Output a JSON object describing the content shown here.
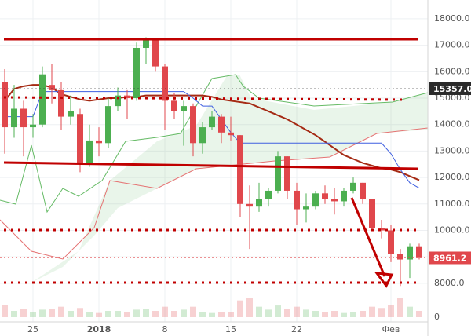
{
  "chart_data": {
    "type": "candlestick",
    "categories": [
      null,
      null,
      null,
      "25",
      null,
      null,
      null,
      null,
      null,
      null,
      "2018",
      null,
      null,
      null,
      null,
      null,
      null,
      "8",
      null,
      null,
      null,
      null,
      null,
      null,
      "15",
      null,
      null,
      null,
      null,
      null,
      null,
      "22",
      null,
      null,
      null,
      null,
      null,
      null,
      null,
      null,
      null,
      "Фев",
      null,
      null,
      null
    ],
    "open": [
      15600,
      13900,
      14600,
      13900,
      14000,
      15500,
      15300,
      14300,
      14400,
      12500,
      13400,
      13300,
      14700,
      15100,
      15000,
      16900,
      17200,
      16200,
      14900,
      14500,
      14700,
      13300,
      13900,
      14300,
      13700,
      13600,
      11000,
      10900,
      11200,
      11500,
      12800,
      11500,
      10800,
      10900,
      11400,
      11200,
      11100,
      11500,
      11800,
      11200,
      10100,
      10000,
      9100,
      8900,
      9400
    ],
    "high": [
      16100,
      15500,
      14900,
      14400,
      16200,
      16300,
      15600,
      15100,
      14600,
      14000,
      13900,
      15000,
      15400,
      15300,
      17100,
      17300,
      17200,
      16300,
      15200,
      14900,
      14800,
      14100,
      14500,
      14400,
      14300,
      13600,
      11700,
      11800,
      11600,
      13000,
      12800,
      11800,
      11400,
      11500,
      11700,
      11600,
      11600,
      12000,
      11800,
      11200,
      10400,
      10200,
      9300,
      9500,
      9500
    ],
    "low": [
      12900,
      13500,
      12800,
      13500,
      13900,
      14800,
      13800,
      14000,
      12200,
      12400,
      12800,
      13100,
      14500,
      14200,
      14900,
      16300,
      16000,
      13800,
      14200,
      13200,
      12800,
      12900,
      13800,
      13300,
      13400,
      10500,
      9300,
      10700,
      10900,
      11400,
      11200,
      10200,
      10300,
      10800,
      11000,
      10600,
      10900,
      11400,
      11000,
      10000,
      9700,
      8800,
      7900,
      8200,
      8900
    ],
    "close": [
      13900,
      14600,
      13900,
      14000,
      15900,
      15300,
      14300,
      14500,
      12500,
      13400,
      13300,
      14700,
      15100,
      15000,
      16900,
      17200,
      16200,
      14900,
      14500,
      14700,
      13300,
      13900,
      14300,
      13700,
      13600,
      11000,
      10900,
      11200,
      11500,
      12800,
      11500,
      10800,
      10900,
      11400,
      11200,
      11100,
      11500,
      11800,
      11200,
      10100,
      10000,
      9100,
      8900,
      9400,
      8961.2
    ],
    "volume": [
      30,
      15,
      20,
      12,
      18,
      20,
      25,
      15,
      22,
      12,
      10,
      15,
      15,
      12,
      18,
      20,
      15,
      25,
      15,
      18,
      25,
      12,
      10,
      12,
      12,
      40,
      45,
      25,
      18,
      28,
      20,
      25,
      18,
      15,
      12,
      15,
      10,
      12,
      15,
      25,
      22,
      30,
      45,
      25,
      15
    ],
    "up_color": "#4caf50",
    "down_color": "#e0474c",
    "lines": [
      {
        "color": "#a52a14",
        "values": [
          14900,
          15350,
          15450,
          15500,
          15500,
          15400,
          15150,
          15050,
          14950,
          14900,
          14950,
          15000,
          15000,
          15050,
          15050,
          15100,
          15100,
          15100,
          15100,
          15100,
          15100,
          15100,
          15050,
          14950,
          14900,
          14850,
          14800,
          14650,
          14500,
          14350,
          14200,
          14000,
          13800,
          13600,
          13350,
          13100,
          12850,
          12700,
          12550,
          12450,
          12350,
          12300,
          12200,
          12050,
          11900
        ]
      },
      {
        "color": "#3f5fe0",
        "values": [
          14300,
          14300,
          14300,
          14300,
          15250,
          15250,
          15250,
          15250,
          15250,
          15250,
          15250,
          15250,
          15250,
          15250,
          15250,
          15250,
          15250,
          15250,
          15250,
          15250,
          15000,
          14700,
          14700,
          14200,
          13700,
          13300,
          13300,
          13300,
          13300,
          13300,
          13300,
          13300,
          13300,
          13300,
          13300,
          13300,
          13300,
          13300,
          13300,
          13300,
          13300,
          12900,
          12300,
          11800,
          11600
        ]
      }
    ],
    "ylim": [
      7670,
      18710
    ],
    "yticks": [
      {
        "value": 8000,
        "label": "8000.0"
      },
      {
        "value": 9000,
        "label": "9000.0"
      },
      {
        "value": 10000,
        "label": "10000.0"
      },
      {
        "value": 11000,
        "label": "11000.0"
      },
      {
        "value": 12000,
        "label": "12000.0"
      },
      {
        "value": 13000,
        "label": "13000.0"
      },
      {
        "value": 14000,
        "label": "14000.0"
      },
      {
        "value": 15000,
        "label": "15000.0"
      },
      {
        "value": 16000,
        "label": "16000.0"
      },
      {
        "value": 17000,
        "label": "17000.0"
      },
      {
        "value": 18000,
        "label": "18000.0"
      }
    ],
    "volume_ylim": [
      0,
      60
    ],
    "volume_yticks": [
      0
    ],
    "price_markers": [
      {
        "value": 15357,
        "label": "15357.0",
        "color": "#2b2b2b"
      },
      {
        "value": 8961.2,
        "label": "8961.2",
        "color": "#e0474c"
      }
    ]
  }
}
